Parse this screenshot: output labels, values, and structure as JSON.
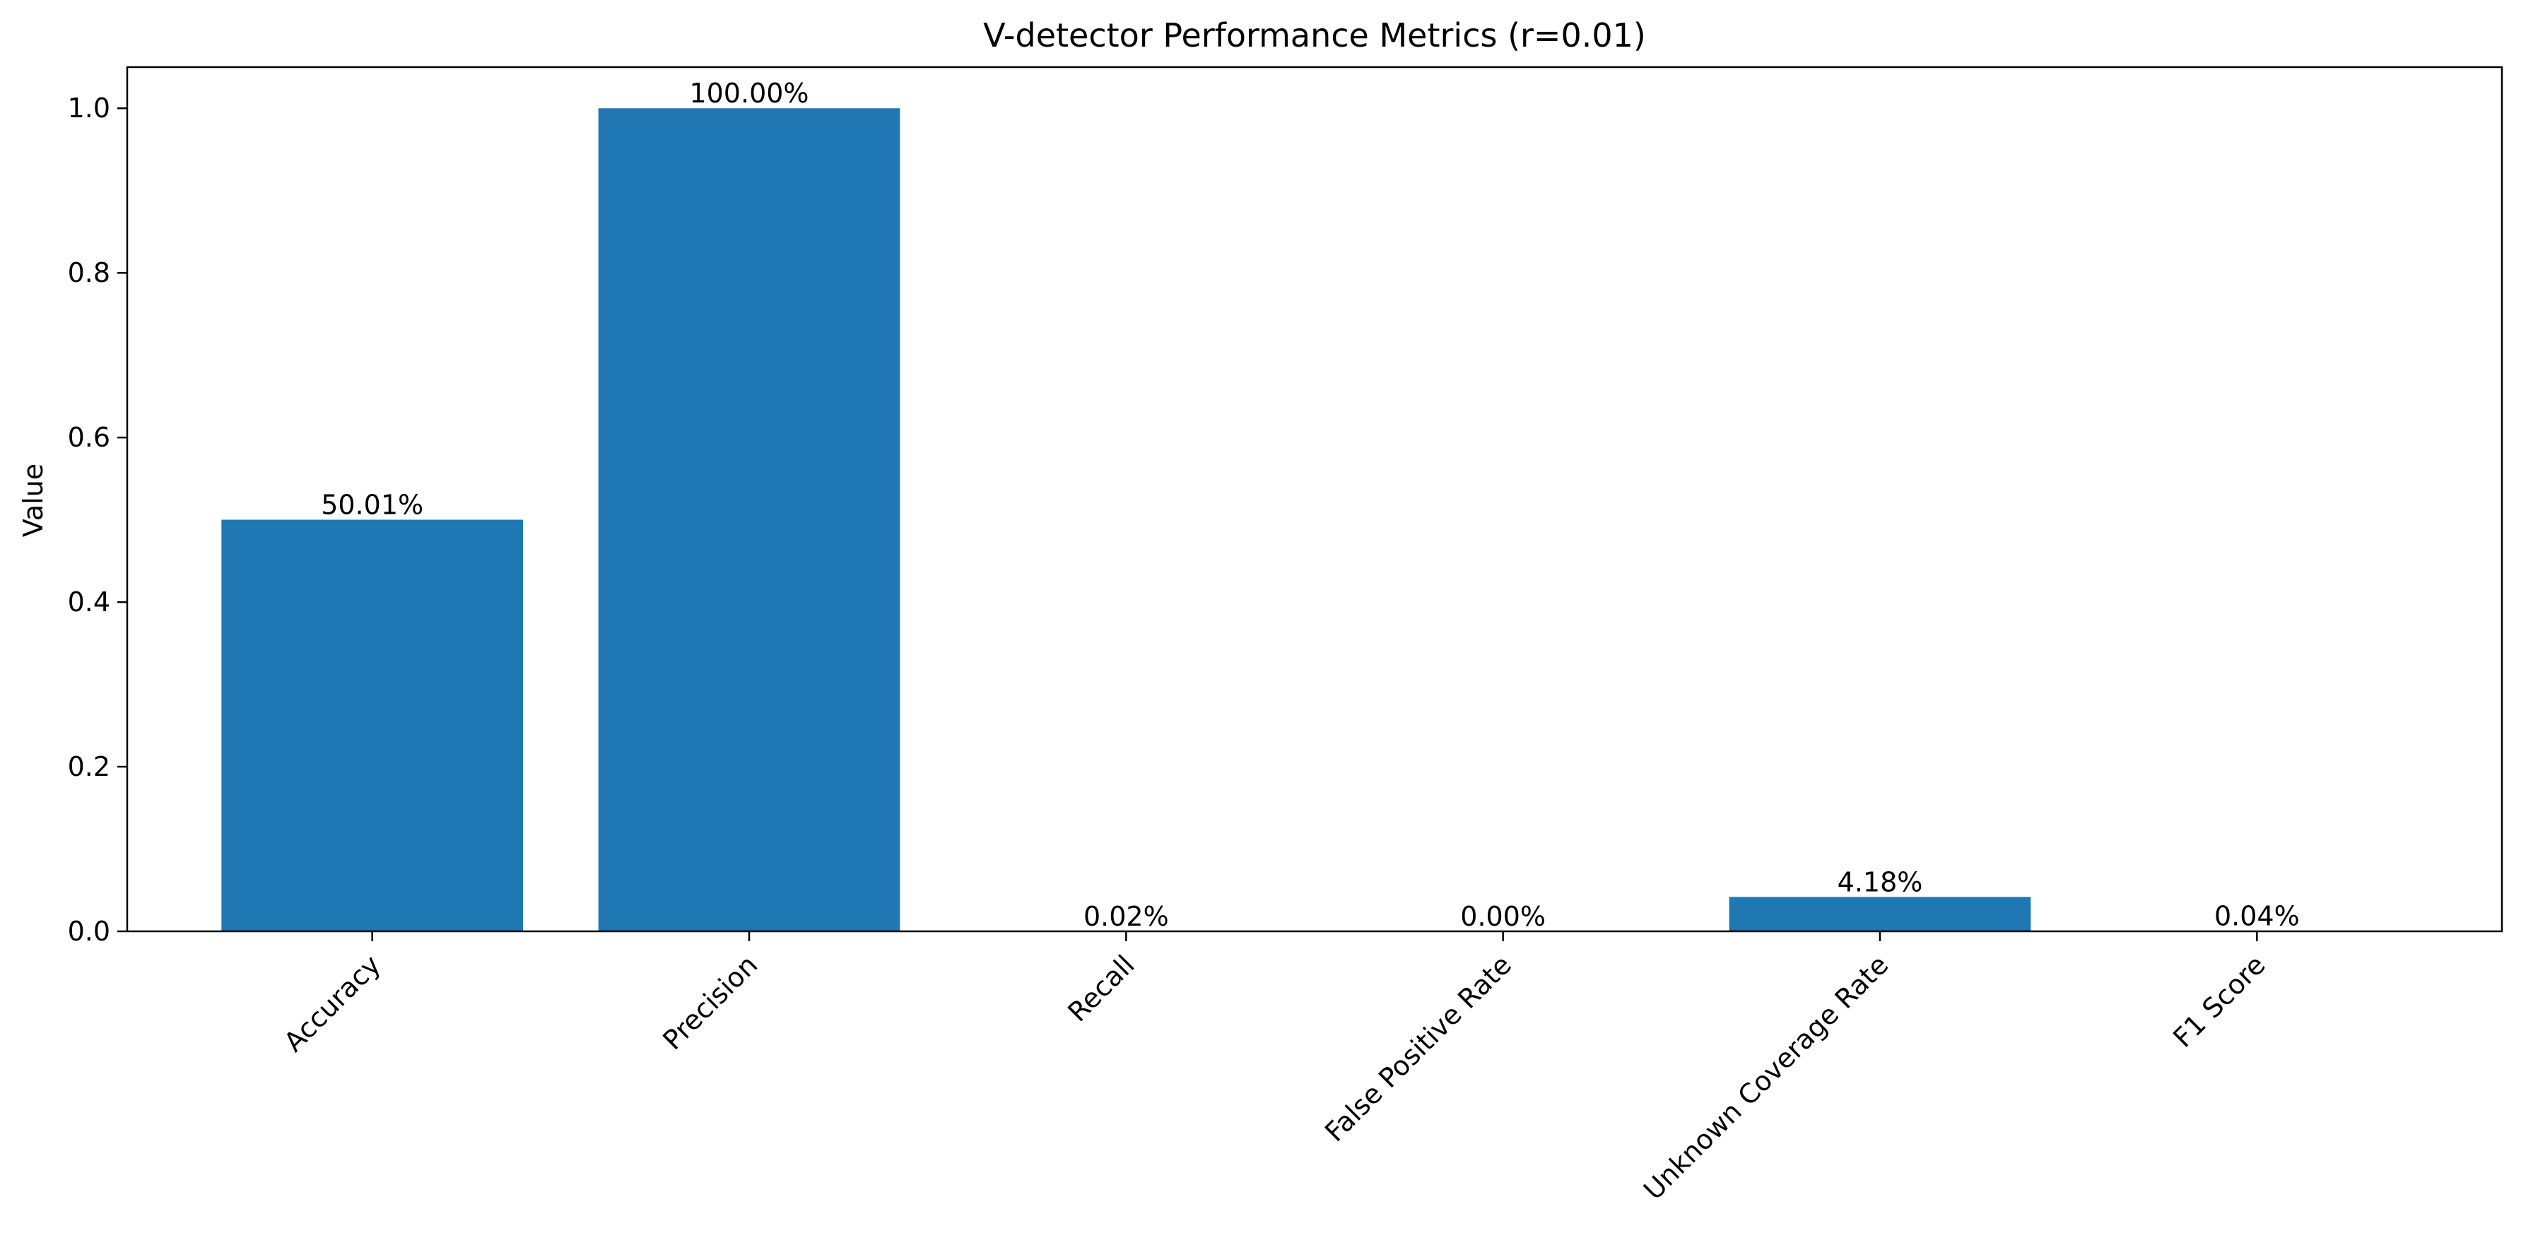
{
  "chart_data": {
    "type": "bar",
    "title": "V-detector Performance Metrics (r=0.01)",
    "xlabel": "",
    "ylabel": "Value",
    "categories": [
      "Accuracy",
      "Precision",
      "Recall",
      "False Positive Rate",
      "Unknown Coverage Rate",
      "F1 Score"
    ],
    "values": [
      0.5001,
      1.0,
      0.0002,
      0.0,
      0.0418,
      0.0004
    ],
    "value_labels": [
      "50.01%",
      "100.00%",
      "0.02%",
      "0.00%",
      "4.18%",
      "0.04%"
    ],
    "ylim": [
      0,
      1.05
    ],
    "yticks": [
      0.0,
      0.2,
      0.4,
      0.6,
      0.8,
      1.0
    ],
    "ytick_labels": [
      "0.0",
      "0.2",
      "0.4",
      "0.6",
      "0.8",
      "1.0"
    ],
    "bar_color": "#1f77b4",
    "grid": false,
    "legend": "none"
  }
}
